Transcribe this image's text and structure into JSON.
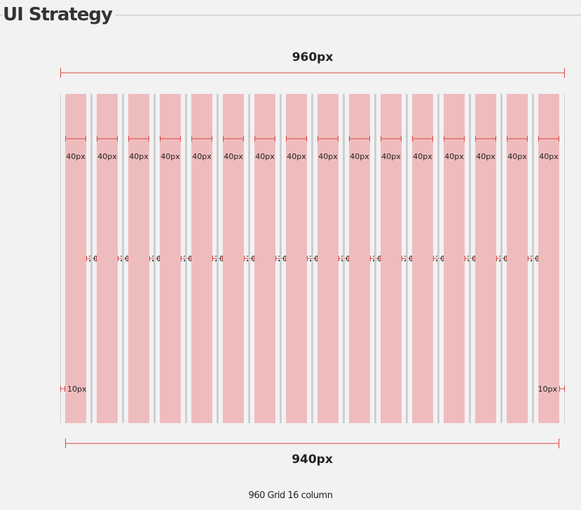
{
  "header": {
    "title": "UI Strategy"
  },
  "diagram": {
    "total_width_label": "960px",
    "content_width_label": "940px",
    "column_width_label": "40px",
    "gutter_width_label": "20px",
    "margin_label": "10px",
    "columns": 16,
    "caption": "960 Grid 16 column"
  },
  "colors": {
    "column_fill": "#efbcbd",
    "dimension_line": "#d9463f",
    "guide_line": "#cfcfcf",
    "background": "#f2f2f2",
    "text": "#333333"
  }
}
